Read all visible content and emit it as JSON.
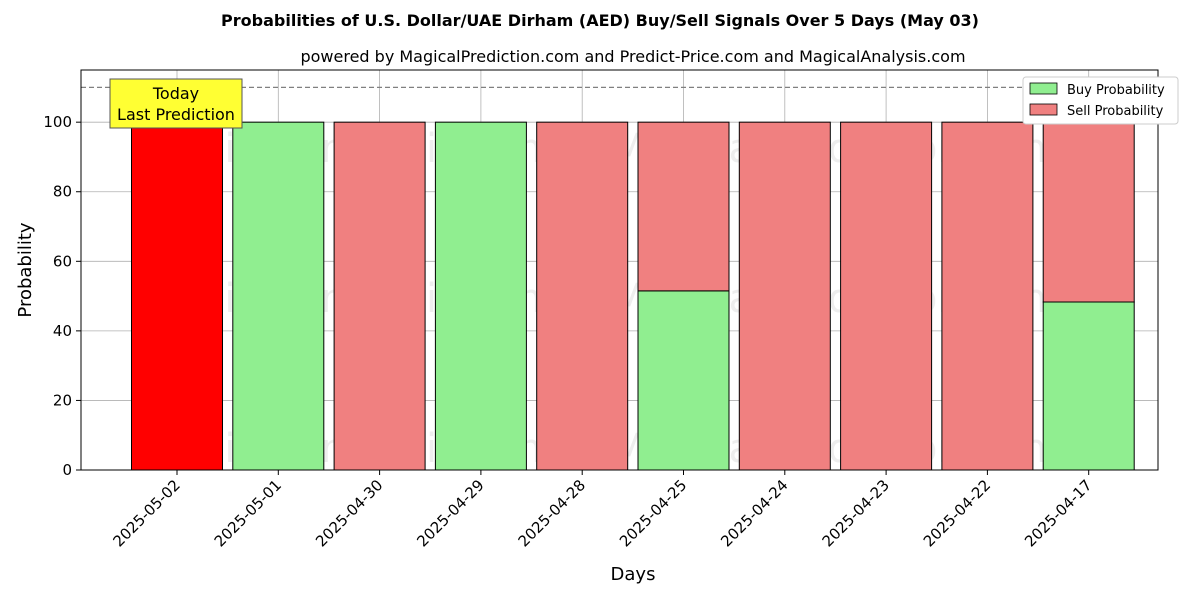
{
  "chart_data": {
    "type": "bar",
    "stacked": true,
    "title": "Probabilities of U.S. Dollar/UAE Dirham (AED) Buy/Sell Signals Over 5 Days (May 03)",
    "subtitle": "powered by MagicalPrediction.com and Predict-Price.com and MagicalAnalysis.com",
    "xlabel": "Days",
    "ylabel": "Probability",
    "ylim": [
      0,
      115
    ],
    "yticks": [
      0,
      20,
      40,
      60,
      80,
      100
    ],
    "grid": true,
    "legend_position": "top-right",
    "categories": [
      "2025-05-02",
      "2025-05-01",
      "2025-04-30",
      "2025-04-29",
      "2025-04-28",
      "2025-04-25",
      "2025-04-24",
      "2025-04-23",
      "2025-04-22",
      "2025-04-17"
    ],
    "series": [
      {
        "name": "Buy Probability",
        "color": "#90ee90",
        "values": [
          0,
          100,
          0,
          100,
          0,
          51.5,
          0,
          0,
          0,
          48.3
        ]
      },
      {
        "name": "Sell Probability",
        "color": "#f08080",
        "values": [
          100,
          0,
          100,
          0,
          100,
          48.5,
          100,
          100,
          100,
          51.7
        ]
      }
    ],
    "highlight": {
      "index": 0,
      "color": "#ff0000"
    },
    "reference_line": {
      "y": 110,
      "style": "dashed"
    },
    "annotation": {
      "lines": [
        "Today",
        "Last Prediction"
      ],
      "background": "#ffff33"
    },
    "watermarks": [
      "MagicalAnalysis.com",
      "MagicalPrediction.com"
    ]
  }
}
